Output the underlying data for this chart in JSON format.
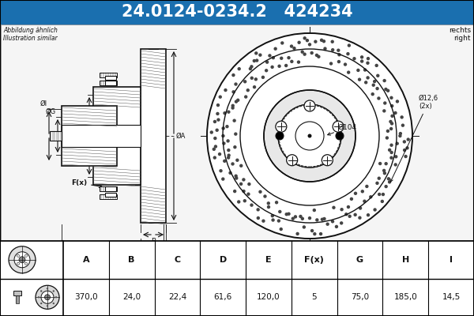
{
  "title_text": "24.0124-0234.2   424234",
  "title_bg": "#1a6faf",
  "title_color": "white",
  "title_fontsize": 15,
  "bg_color": "#f5f5f5",
  "diagram_bg": "#f5f5f5",
  "abbildung_text": "Abbildung ähnlich\nIllustration similar",
  "rechts_text": "rechts\nright",
  "label_104": "Ø104",
  "label_126": "Ø12,6\n(2x)",
  "table_headers": [
    "A",
    "B",
    "C",
    "D",
    "E",
    "F(x)",
    "G",
    "H",
    "I"
  ],
  "table_values": [
    "370,0",
    "24,0",
    "22,4",
    "61,6",
    "120,0",
    "5",
    "75,0",
    "185,0",
    "14,5"
  ],
  "line_color": "#111111",
  "hatch_color": "#555555"
}
